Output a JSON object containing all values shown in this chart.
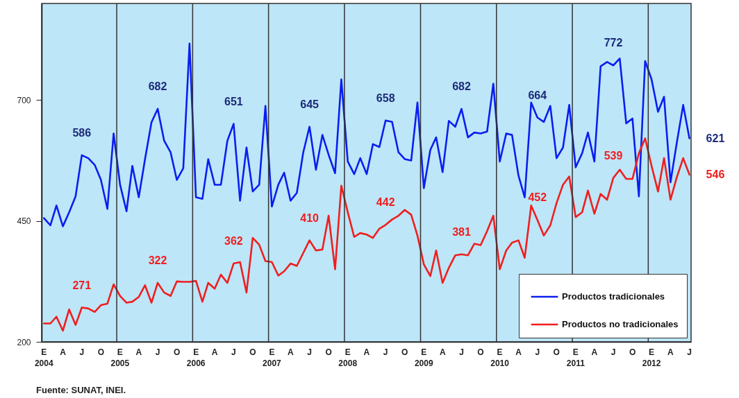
{
  "chart_data": {
    "type": "line",
    "x": [
      "2004-01",
      "2004-02",
      "2004-03",
      "2004-04",
      "2004-05",
      "2004-06",
      "2004-07",
      "2004-08",
      "2004-09",
      "2004-10",
      "2004-11",
      "2004-12",
      "2005-01",
      "2005-02",
      "2005-03",
      "2005-04",
      "2005-05",
      "2005-06",
      "2005-07",
      "2005-08",
      "2005-09",
      "2005-10",
      "2005-11",
      "2005-12",
      "2006-01",
      "2006-02",
      "2006-03",
      "2006-04",
      "2006-05",
      "2006-06",
      "2006-07",
      "2006-08",
      "2006-09",
      "2006-10",
      "2006-11",
      "2006-12",
      "2007-01",
      "2007-02",
      "2007-03",
      "2007-04",
      "2007-05",
      "2007-06",
      "2007-07",
      "2007-08",
      "2007-09",
      "2007-10",
      "2007-11",
      "2007-12",
      "2008-01",
      "2008-02",
      "2008-03",
      "2008-04",
      "2008-05",
      "2008-06",
      "2008-07",
      "2008-08",
      "2008-09",
      "2008-10",
      "2008-11",
      "2008-12",
      "2009-01",
      "2009-02",
      "2009-03",
      "2009-04",
      "2009-05",
      "2009-06",
      "2009-07",
      "2009-08",
      "2009-09",
      "2009-10",
      "2009-11",
      "2009-12",
      "2010-01",
      "2010-02",
      "2010-03",
      "2010-04",
      "2010-05",
      "2010-06",
      "2010-07",
      "2010-08",
      "2010-09",
      "2010-10",
      "2010-11",
      "2010-12",
      "2011-01",
      "2011-02",
      "2011-03",
      "2011-04",
      "2011-05",
      "2011-06",
      "2011-07",
      "2011-08",
      "2011-09",
      "2011-10",
      "2011-11",
      "2011-12",
      "2012-01",
      "2012-02",
      "2012-03",
      "2012-04",
      "2012-05",
      "2012-06",
      "2012-07"
    ],
    "series": [
      {
        "name": "Productos tradicionales",
        "color": "#0a1ef0",
        "values": [
          456,
          441,
          482,
          439,
          468,
          501,
          586,
          580,
          566,
          535,
          475,
          631,
          525,
          470,
          564,
          499,
          578,
          654,
          682,
          616,
          592,
          535,
          559,
          817,
          499,
          496,
          578,
          525,
          525,
          616,
          651,
          492,
          602,
          511,
          525,
          688,
          480,
          525,
          550,
          492,
          508,
          592,
          645,
          556,
          628,
          587,
          549,
          743,
          573,
          547,
          580,
          547,
          609,
          603,
          658,
          655,
          592,
          578,
          575,
          695,
          518,
          597,
          623,
          551,
          657,
          645,
          682,
          623,
          633,
          631,
          635,
          734,
          573,
          631,
          628,
          544,
          499,
          695,
          664,
          655,
          688,
          580,
          602,
          690,
          561,
          590,
          633,
          573,
          770,
          779,
          772,
          786,
          652,
          662,
          501,
          781,
          743,
          676,
          707,
          530,
          611,
          690,
          621
        ]
      },
      {
        "name": "Productos no tradicionales",
        "color": "#f01e1e",
        "values": [
          238,
          238,
          252,
          223,
          267,
          235,
          271,
          269,
          262,
          276,
          279,
          319,
          295,
          281,
          283,
          293,
          317,
          281,
          322,
          302,
          295,
          325,
          324,
          324,
          326,
          283,
          322,
          310,
          339,
          322,
          362,
          365,
          302,
          415,
          401,
          367,
          365,
          337,
          346,
          362,
          357,
          384,
          410,
          389,
          391,
          461,
          350,
          523,
          468,
          417,
          425,
          422,
          415,
          434,
          442,
          453,
          461,
          473,
          463,
          420,
          360,
          336,
          389,
          322,
          353,
          379,
          381,
          379,
          403,
          400,
          429,
          461,
          350,
          389,
          405,
          410,
          374,
          482,
          452,
          420,
          441,
          487,
          525,
          542,
          458,
          468,
          513,
          465,
          506,
          494,
          539,
          556,
          537,
          537,
          590,
          621,
          564,
          511,
          580,
          494,
          540,
          580,
          546
        ]
      }
    ],
    "xlim": [
      "2003-12-21",
      "2012-07-09"
    ],
    "xticks": [
      {
        "value": "2004-01",
        "label": "E\n2004"
      },
      {
        "value": "2004-04",
        "label": "A"
      },
      {
        "value": "2004-07",
        "label": "J"
      },
      {
        "value": "2004-10",
        "label": "O"
      },
      {
        "value": "2005-01",
        "label": "E\n2005"
      },
      {
        "value": "2005-04",
        "label": "A"
      },
      {
        "value": "2005-07",
        "label": "J"
      },
      {
        "value": "2005-10",
        "label": "O"
      },
      {
        "value": "2006-01",
        "label": "E\n2006"
      },
      {
        "value": "2006-04",
        "label": "A"
      },
      {
        "value": "2006-07",
        "label": "J"
      },
      {
        "value": "2006-10",
        "label": "O"
      },
      {
        "value": "2007-01",
        "label": "E\n2007"
      },
      {
        "value": "2007-04",
        "label": "A"
      },
      {
        "value": "2007-07",
        "label": "J"
      },
      {
        "value": "2007-10",
        "label": "O"
      },
      {
        "value": "2008-01",
        "label": "E\n2008"
      },
      {
        "value": "2008-04",
        "label": "A"
      },
      {
        "value": "2008-07",
        "label": "J"
      },
      {
        "value": "2008-10",
        "label": "O"
      },
      {
        "value": "2009-01",
        "label": "E\n2009"
      },
      {
        "value": "2009-04",
        "label": "A"
      },
      {
        "value": "2009-07",
        "label": "J"
      },
      {
        "value": "2009-10",
        "label": "O"
      },
      {
        "value": "2010-01",
        "label": "E\n2010"
      },
      {
        "value": "2010-04",
        "label": "A"
      },
      {
        "value": "2010-07",
        "label": "J"
      },
      {
        "value": "2010-10",
        "label": "O"
      },
      {
        "value": "2011-01",
        "label": "E\n2011"
      },
      {
        "value": "2011-04",
        "label": "A"
      },
      {
        "value": "2011-07",
        "label": "J"
      },
      {
        "value": "2011-10",
        "label": "O"
      },
      {
        "value": "2012-01",
        "label": "E\n2012"
      },
      {
        "value": "2012-04",
        "label": "A"
      },
      {
        "value": "2012-07",
        "label": "J"
      }
    ],
    "ylim": [
      200,
      900
    ],
    "yticks": [
      200,
      450,
      700
    ],
    "ref_lines": [
      {
        "axis": "x",
        "value": "2004-12-16",
        "color": "#333333"
      },
      {
        "axis": "x",
        "value": "2005-12-16",
        "color": "#333333"
      },
      {
        "axis": "x",
        "value": "2006-12-16",
        "color": "#333333"
      },
      {
        "axis": "x",
        "value": "2007-12-16",
        "color": "#333333"
      },
      {
        "axis": "x",
        "value": "2008-12-16",
        "color": "#333333"
      },
      {
        "axis": "x",
        "value": "2009-12-16",
        "color": "#333333"
      },
      {
        "axis": "x",
        "value": "2010-12-16",
        "color": "#333333"
      },
      {
        "axis": "x",
        "value": "2011-12-16",
        "color": "#333333"
      }
    ],
    "annotations": [
      {
        "text": "586",
        "x": "2004-07",
        "y": 586
      },
      {
        "text": "682",
        "x": "2005-07",
        "y": 682
      },
      {
        "text": "651",
        "x": "2006-07",
        "y": 651
      },
      {
        "text": "645",
        "x": "2007-07",
        "y": 645
      },
      {
        "text": "658",
        "x": "2008-07",
        "y": 658
      },
      {
        "text": "682",
        "x": "2009-07",
        "y": 682
      },
      {
        "text": "664",
        "x": "2010-07",
        "y": 664
      },
      {
        "text": "772",
        "x": "2011-07",
        "y": 772
      },
      {
        "text": "621",
        "x": "2012-07",
        "y": 621
      },
      {
        "text": "271",
        "x": "2004-07",
        "y": 271
      },
      {
        "text": "322",
        "x": "2005-07",
        "y": 322
      },
      {
        "text": "362",
        "x": "2006-07",
        "y": 362
      },
      {
        "text": "410",
        "x": "2007-07",
        "y": 410
      },
      {
        "text": "442",
        "x": "2008-07",
        "y": 442
      },
      {
        "text": "381",
        "x": "2009-07",
        "y": 381
      },
      {
        "text": "452",
        "x": "2010-07",
        "y": 452
      },
      {
        "text": "539",
        "x": "2011-07",
        "y": 539
      },
      {
        "text": "546",
        "x": "2012-07",
        "y": 546
      },
      "Fuente: SUNAT, INEI."
    ],
    "legend": "bottom right",
    "grid": false
  }
}
